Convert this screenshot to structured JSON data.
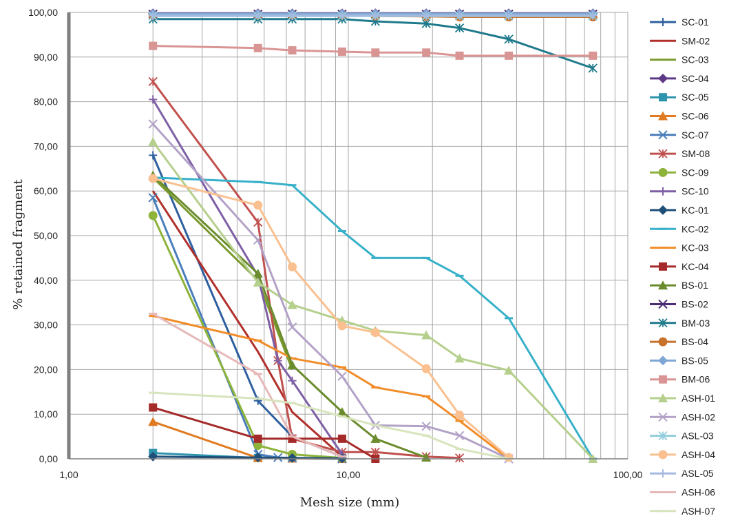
{
  "chart_data": {
    "type": "line",
    "xlabel": "Mesh size (mm)",
    "ylabel": "% retained fragment",
    "xscale": "log",
    "xlim": [
      1,
      100
    ],
    "ylim": [
      0,
      100
    ],
    "x_tick_labels": [
      "1,00",
      "10,00",
      "100,00"
    ],
    "y_tick_labels": [
      "0,00",
      "10,00",
      "20,00",
      "30,00",
      "40,00",
      "50,00",
      "60,00",
      "70,00",
      "80,00",
      "90,00",
      "100,00"
    ],
    "grid": true,
    "legend_position": "right",
    "series": [
      {
        "name": "SC-01",
        "color": "#2e5f9e",
        "marker": "plus",
        "x": [
          2,
          4.75,
          6.3,
          9.5
        ],
        "y": [
          68,
          13,
          5,
          0.5
        ]
      },
      {
        "name": "SM-02",
        "color": "#b0302b",
        "marker": "none",
        "x": [
          2,
          4.75,
          6.3,
          9.5
        ],
        "y": [
          60,
          24,
          10.5,
          0.5
        ]
      },
      {
        "name": "SC-03",
        "color": "#7b9a2e",
        "marker": "none",
        "x": [
          2,
          4.75,
          6.3
        ],
        "y": [
          63,
          40,
          20
        ]
      },
      {
        "name": "SC-04",
        "color": "#5e3a86",
        "marker": "diamond",
        "x": [
          2,
          4.75,
          6.3,
          9.5,
          12.5,
          19,
          25,
          37.5,
          75
        ],
        "y": [
          99.8,
          99.8,
          99.8,
          99.8,
          99.8,
          99.8,
          99.8,
          99.8,
          99.8
        ]
      },
      {
        "name": "SC-05",
        "color": "#2e94ad",
        "marker": "square",
        "x": [
          2,
          4.75,
          6.3,
          9.5
        ],
        "y": [
          1.3,
          0.2,
          0.1,
          0
        ]
      },
      {
        "name": "SC-06",
        "color": "#e07b22",
        "marker": "triangle",
        "x": [
          2,
          4.75,
          6.3,
          9.5
        ],
        "y": [
          8.3,
          0.2,
          0.1,
          0
        ]
      },
      {
        "name": "SC-07",
        "color": "#4a7ebb",
        "marker": "x",
        "x": [
          2,
          4.75,
          5.6,
          6.3,
          9.5
        ],
        "y": [
          58.5,
          1,
          0.3,
          0.2,
          0
        ]
      },
      {
        "name": "SM-08",
        "color": "#c0504d",
        "marker": "asterisk",
        "x": [
          2,
          4.75,
          5.6,
          6.3,
          9.5,
          12.5,
          19,
          25
        ],
        "y": [
          84.5,
          53,
          22,
          4.5,
          1.5,
          1.5,
          0.5,
          0.2
        ]
      },
      {
        "name": "SC-09",
        "color": "#8db33b",
        "marker": "circle",
        "x": [
          2,
          4.75,
          6.3,
          9.5
        ],
        "y": [
          54.5,
          3,
          1,
          0.2
        ]
      },
      {
        "name": "SC-10",
        "color": "#7e5fa5",
        "marker": "plus",
        "x": [
          2,
          4.75,
          5.6,
          6.3,
          9.5
        ],
        "y": [
          80.5,
          41,
          22,
          17.5,
          1
        ]
      },
      {
        "name": "KC-01",
        "color": "#1f4e79",
        "marker": "diamond",
        "x": [
          2,
          4.75,
          6.3,
          9.5
        ],
        "y": [
          0.5,
          0.3,
          0.2,
          0.1
        ]
      },
      {
        "name": "KC-02",
        "color": "#37b0c9",
        "marker": "dash",
        "x": [
          2,
          4.75,
          6.3,
          9.5,
          12.5,
          19,
          25,
          37.5,
          75
        ],
        "y": [
          63,
          62,
          61.3,
          51,
          45,
          45,
          41,
          31.5,
          0
        ]
      },
      {
        "name": "KC-03",
        "color": "#f28c28",
        "marker": "dash",
        "x": [
          2,
          4.75,
          6.3,
          9.5,
          12.5,
          19,
          25,
          37.5
        ],
        "y": [
          32,
          26.5,
          22.5,
          20.5,
          16,
          14,
          8.5,
          0
        ]
      },
      {
        "name": "KC-04",
        "color": "#a52a2a",
        "marker": "square",
        "x": [
          2,
          4.75,
          6.3,
          9.5,
          12.5
        ],
        "y": [
          11.5,
          4.5,
          4.5,
          4.5,
          0
        ]
      },
      {
        "name": "BS-01",
        "color": "#6b8c2d",
        "marker": "triangle",
        "x": [
          2,
          4.75,
          6.3,
          9.5,
          12.5,
          19
        ],
        "y": [
          63.5,
          41.5,
          21,
          10.5,
          4.5,
          0.3
        ]
      },
      {
        "name": "BS-02",
        "color": "#4b2d73",
        "marker": "x",
        "x": [
          2,
          4.75,
          6.3,
          9.5,
          12.5,
          19,
          25,
          37.5,
          75
        ],
        "y": [
          99.6,
          99.6,
          99.6,
          99.6,
          99.6,
          99.6,
          99.6,
          99.6,
          99.6
        ]
      },
      {
        "name": "BM-03",
        "color": "#1f7a8c",
        "marker": "asterisk",
        "x": [
          2,
          4.75,
          6.3,
          9.5,
          12.5,
          19,
          25,
          37.5,
          75
        ],
        "y": [
          98.5,
          98.5,
          98.5,
          98.5,
          98,
          97.5,
          96.5,
          94,
          87.5
        ]
      },
      {
        "name": "BS-04",
        "color": "#c8712a",
        "marker": "circle",
        "x": [
          2,
          4.75,
          6.3,
          9.5,
          12.5,
          19,
          25,
          37.5,
          75
        ],
        "y": [
          99.4,
          99.4,
          99.4,
          99.4,
          99.2,
          99.1,
          99,
          99,
          99
        ]
      },
      {
        "name": "BS-05",
        "color": "#7fa7d6",
        "marker": "diamond",
        "x": [
          2,
          4.75,
          6.3,
          9.5,
          12.5,
          19,
          25,
          37.5,
          75
        ],
        "y": [
          99.7,
          99.7,
          99.7,
          99.7,
          99.7,
          99.7,
          99.7,
          99.7,
          99.7
        ]
      },
      {
        "name": "BM-06",
        "color": "#d99594",
        "marker": "square",
        "x": [
          2,
          4.75,
          6.3,
          9.5,
          12.5,
          19,
          25,
          37.5,
          75
        ],
        "y": [
          92.5,
          92,
          91.5,
          91.2,
          91,
          91,
          90.3,
          90.3,
          90.3
        ]
      },
      {
        "name": "ASH-01",
        "color": "#b5cf8c",
        "marker": "triangle",
        "x": [
          2,
          4.75,
          6.3,
          9.5,
          12.5,
          19,
          25,
          37.5,
          75
        ],
        "y": [
          71,
          39.5,
          34.5,
          31,
          28.7,
          27.7,
          22.5,
          19.8,
          0
        ]
      },
      {
        "name": "ASH-02",
        "color": "#b3a2c7",
        "marker": "x",
        "x": [
          2,
          4.75,
          6.3,
          9.5,
          12.5,
          19,
          25,
          37.5
        ],
        "y": [
          75,
          49,
          29.5,
          18.5,
          7.5,
          7.3,
          5.2,
          0
        ]
      },
      {
        "name": "ASL-03",
        "color": "#93cddd",
        "marker": "asterisk",
        "x": [
          2,
          4.75,
          6.3,
          9.5,
          12.5,
          19,
          25,
          37.5,
          75
        ],
        "y": [
          99.2,
          99.2,
          99.2,
          99.2,
          99.2,
          99.2,
          99.2,
          99.2,
          99.2
        ]
      },
      {
        "name": "ASH-04",
        "color": "#fac090",
        "marker": "circle",
        "x": [
          2,
          4.75,
          6.3,
          9.5,
          12.5,
          19,
          25,
          37.5
        ],
        "y": [
          62.8,
          56.8,
          43,
          29.8,
          28.3,
          20.2,
          9.8,
          0.3
        ]
      },
      {
        "name": "ASL-05",
        "color": "#a6b9e0",
        "marker": "plus",
        "x": [
          2,
          4.75,
          6.3,
          9.5,
          12.5,
          19,
          25,
          37.5,
          75
        ],
        "y": [
          99.3,
          99.3,
          99.3,
          99.3,
          99.3,
          99.3,
          99.3,
          99.3,
          99.3
        ]
      },
      {
        "name": "ASH-06",
        "color": "#e6b9b8",
        "marker": "dash",
        "x": [
          2,
          4.75,
          6.3,
          9.5
        ],
        "y": [
          32.5,
          19,
          5,
          0.5
        ]
      },
      {
        "name": "ASH-07",
        "color": "#d7e4bd",
        "marker": "dash",
        "x": [
          2,
          4.75,
          6.3,
          9.5,
          12.5,
          19,
          25,
          37.5
        ],
        "y": [
          14.8,
          13.5,
          12.5,
          9.5,
          7.5,
          5.2,
          2.2,
          0
        ]
      }
    ]
  }
}
